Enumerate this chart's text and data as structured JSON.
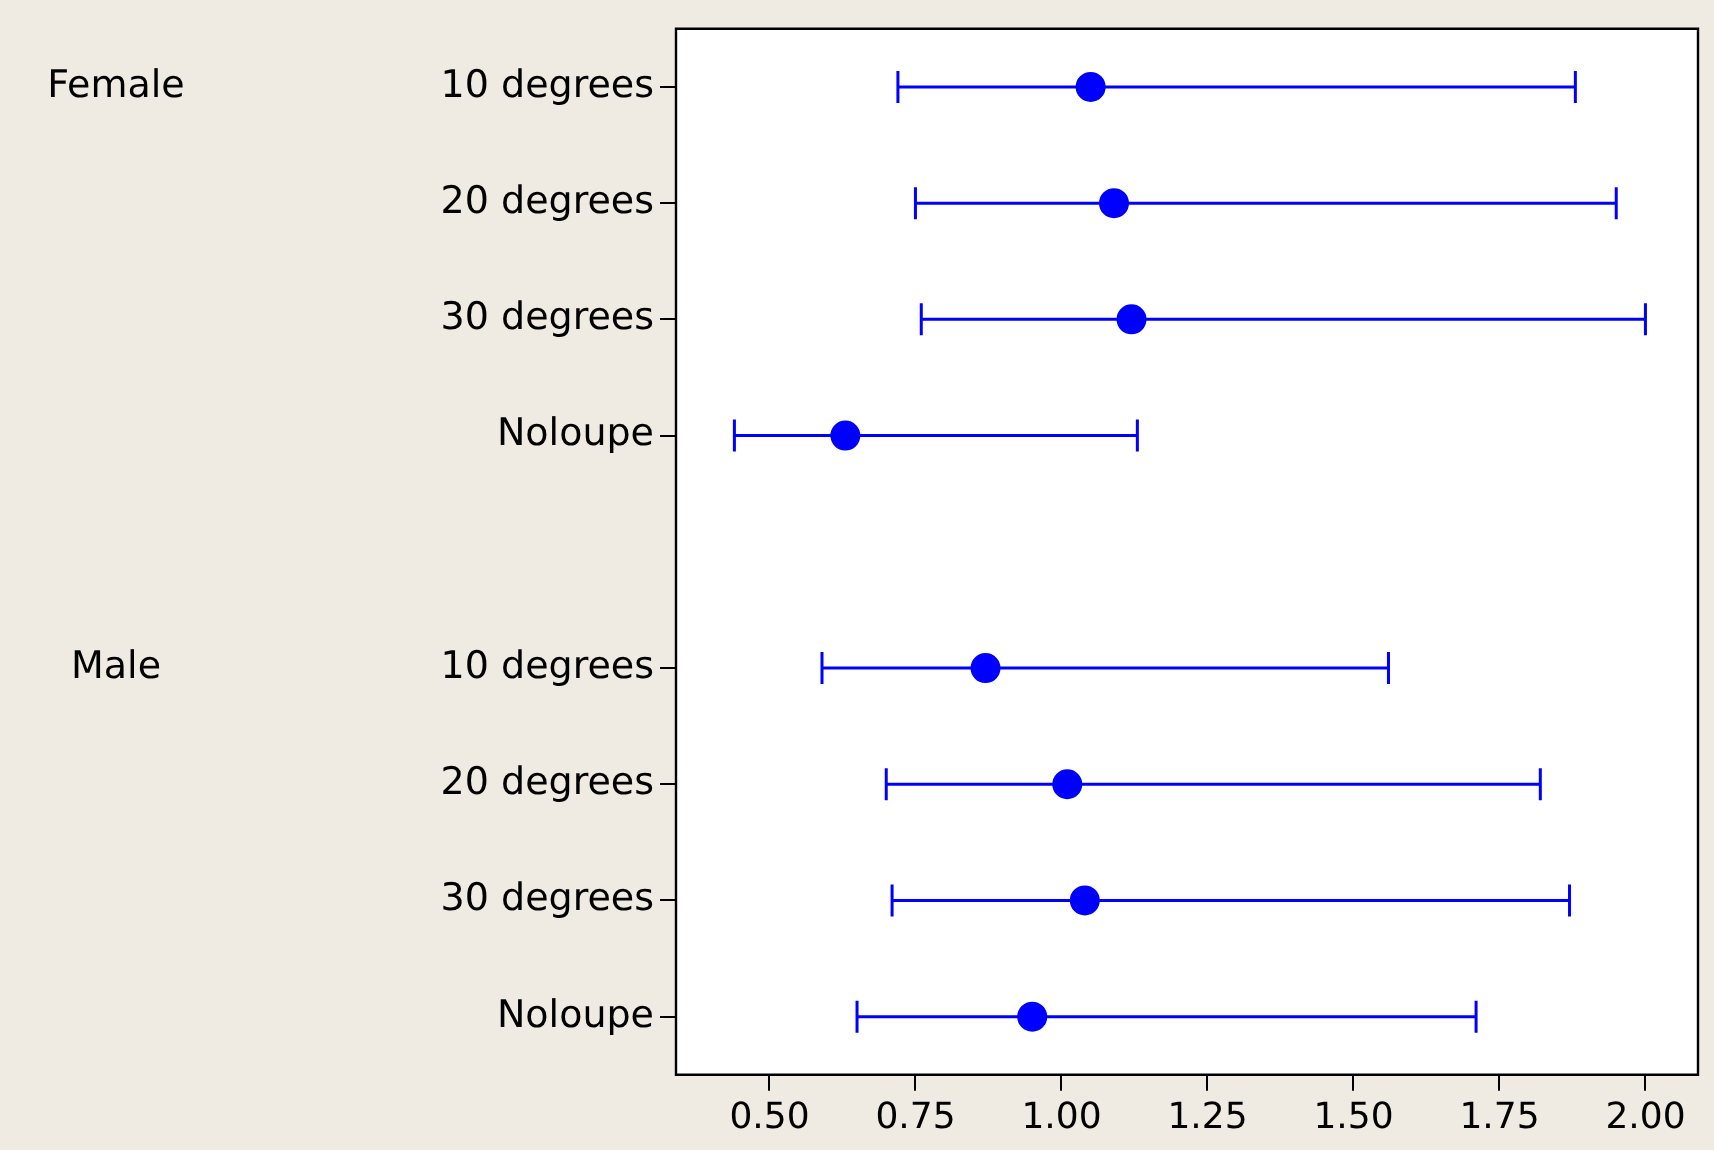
{
  "chart_data": {
    "type": "scatter",
    "orientation": "horizontal",
    "categories": [
      "10 degrees",
      "20 degrees",
      "30 degrees",
      "Noloupe",
      null,
      "10 degrees",
      "20 degrees",
      "30 degrees",
      "Noloupe"
    ],
    "series": [
      {
        "color": "#0000ff",
        "values": [
          1.05,
          1.09,
          1.12,
          0.63,
          null,
          null,
          null,
          null,
          null
        ],
        "errors": [
          [
            0.72,
            1.88
          ],
          [
            0.75,
            1.95
          ],
          [
            0.76,
            2.0
          ],
          [
            0.44,
            1.13
          ],
          null,
          null,
          null,
          null,
          null
        ]
      },
      {
        "color": "#0000ff",
        "values": [
          null,
          null,
          null,
          null,
          null,
          0.87,
          1.01,
          1.04,
          0.95
        ],
        "errors": [
          null,
          null,
          null,
          null,
          null,
          [
            0.59,
            1.56
          ],
          [
            0.7,
            1.82
          ],
          [
            0.71,
            1.87
          ],
          [
            0.65,
            1.71
          ]
        ]
      }
    ],
    "annotations": [
      "Female",
      "Male"
    ],
    "xlim": [
      0.34,
      2.09
    ],
    "xticks": [
      {
        "value": 0.5,
        "label": "0.50"
      },
      {
        "value": 0.75,
        "label": "0.75"
      },
      {
        "value": 1.0,
        "label": "1.00"
      },
      {
        "value": 1.25,
        "label": "1.25"
      },
      {
        "value": 1.5,
        "label": "1.50"
      },
      {
        "value": 1.75,
        "label": "1.75"
      },
      {
        "value": 2.0,
        "label": "2.00"
      }
    ],
    "marker": "circle",
    "grid": false,
    "legend": false
  }
}
